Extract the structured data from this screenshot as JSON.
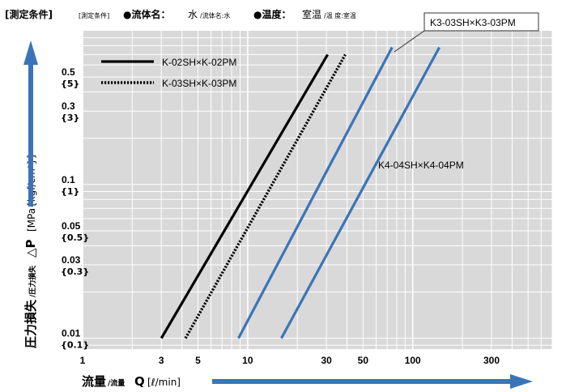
{
  "conditions": {
    "heading": "[測定条件]",
    "heading_small": "[測定条件]",
    "fluid_label": "●流体名：",
    "fluid_value": "水",
    "fluid_small": "/流体名:水",
    "temp_label": "●温度：",
    "temp_value": "室温",
    "temp_small": "/温 度:室温"
  },
  "colors": {
    "plot_bg": "#d9d9d9",
    "grid": "#ffffff",
    "k_series": "#000000",
    "k3_k4_series": "#3a74b8",
    "axis_arrow": "#3a74b8"
  },
  "chart_data": {
    "type": "line",
    "x_scale": "log",
    "y_scale": "log",
    "xlabel": {
      "main": "流量",
      "small": "/流量",
      "symbol": "Q",
      "unit": "[ℓ/min]"
    },
    "ylabel": {
      "main": "圧力損失",
      "small": "/圧力損失",
      "symbol": "△P",
      "unit": "[MPa{kgf/cm²}]"
    },
    "xlim": [
      1,
      700
    ],
    "ylim": [
      0.0085,
      1.0
    ],
    "x_ticks": [
      {
        "value": 1,
        "label": "1"
      },
      {
        "value": 3,
        "label": "3"
      },
      {
        "value": 5,
        "label": "5"
      },
      {
        "value": 10,
        "label": "10"
      },
      {
        "value": 30,
        "label": "30"
      },
      {
        "value": 50,
        "label": "50"
      },
      {
        "value": 100,
        "label": "100"
      },
      {
        "value": 300,
        "label": "300"
      }
    ],
    "y_ticks": [
      {
        "value": 0.5,
        "label": "0.5",
        "sub": "{5}"
      },
      {
        "value": 0.3,
        "label": "0.3",
        "sub": "{3}"
      },
      {
        "value": 0.1,
        "label": "0.1",
        "sub": "{1}"
      },
      {
        "value": 0.05,
        "label": "0.05",
        "sub": "{0.5}"
      },
      {
        "value": 0.03,
        "label": "0.03",
        "sub": "{0.3}"
      },
      {
        "value": 0.01,
        "label": "0.01",
        "sub": "{0.1}"
      }
    ],
    "grid": true,
    "legend_position": "top-left",
    "series": [
      {
        "name": "K-02SH×K-02PM",
        "style": "solid",
        "color": "#000000",
        "x": [
          3.0,
          30.5
        ],
        "y": [
          0.01,
          0.7
        ],
        "legend": true
      },
      {
        "name": "K-03SH×K-03PM",
        "style": "dotted",
        "color": "#000000",
        "x": [
          4.2,
          39.0
        ],
        "y": [
          0.01,
          0.7
        ],
        "legend": true
      },
      {
        "name": "K3-03SH×K3-03PM",
        "style": "solid",
        "color": "#3a74b8",
        "x": [
          8.8,
          75.0
        ],
        "y": [
          0.01,
          0.78
        ],
        "legend": false
      },
      {
        "name": "K4-04SH×K4-04PM",
        "style": "solid",
        "color": "#3a74b8",
        "x": [
          16.0,
          145.0
        ],
        "y": [
          0.01,
          0.78
        ],
        "legend": false
      }
    ],
    "annotations": [
      {
        "text": "K3-03SH×K3-03PM",
        "anchor": "callout-top-right"
      },
      {
        "text": "K4-04SH×K4-04PM",
        "anchor": "right-of-curve"
      }
    ]
  }
}
